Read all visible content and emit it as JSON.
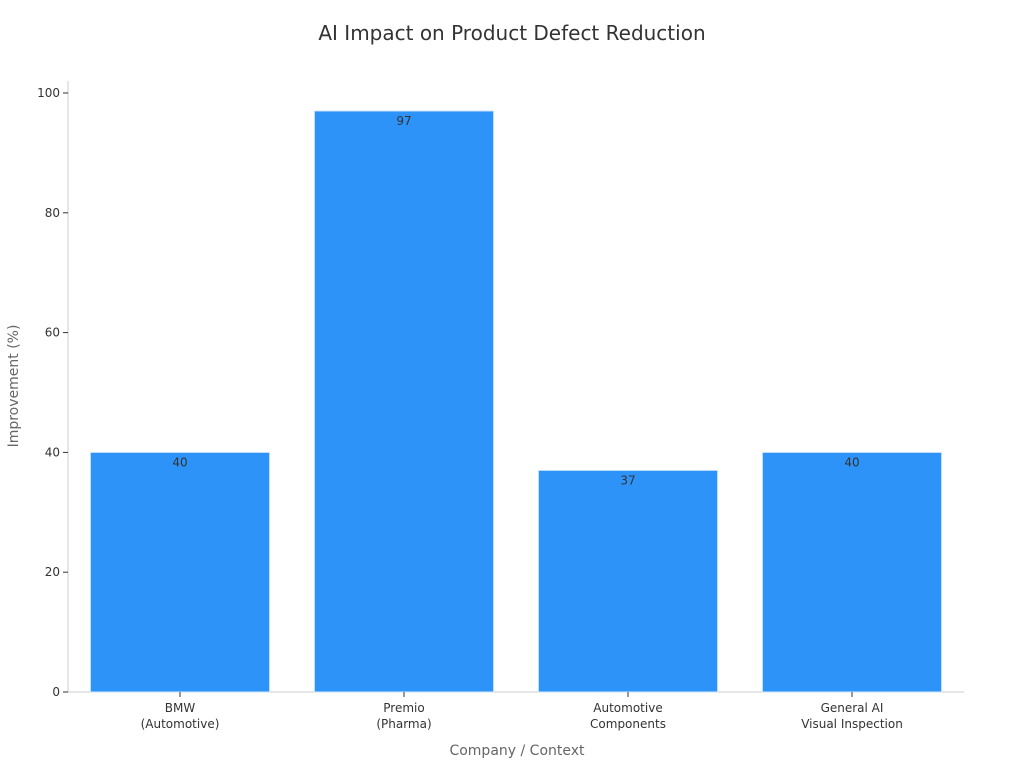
{
  "chart_data": {
    "type": "bar",
    "title": "AI Impact on Product Defect Reduction",
    "xlabel": "Company / Context",
    "ylabel": "Improvement (%)",
    "categories": [
      [
        "BMW",
        "(Automotive)"
      ],
      [
        "Premio",
        "(Pharma)"
      ],
      [
        "Automotive",
        "Components"
      ],
      [
        "General AI",
        "Visual Inspection"
      ]
    ],
    "values": [
      40,
      97,
      37,
      40
    ],
    "data_labels": [
      "40",
      "97",
      "37",
      "40"
    ],
    "ylim": [
      0,
      102
    ],
    "yticks": [
      0,
      20,
      40,
      60,
      80,
      100
    ],
    "grid": false,
    "legend": "none",
    "colors": {
      "bar": "#2e93f8",
      "bar_edge": "#d0e6fb",
      "axis": "#cccccc",
      "text": "#333333",
      "axis_title": "#666666"
    }
  }
}
